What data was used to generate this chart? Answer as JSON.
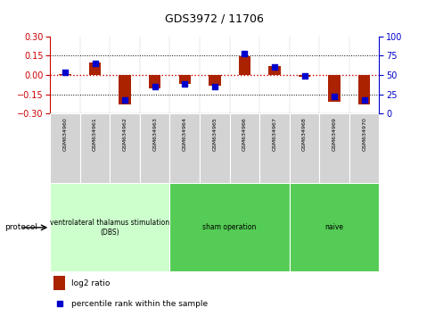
{
  "title": "GDS3972 / 11706",
  "samples": [
    "GSM634960",
    "GSM634961",
    "GSM634962",
    "GSM634963",
    "GSM634964",
    "GSM634965",
    "GSM634966",
    "GSM634967",
    "GSM634968",
    "GSM634969",
    "GSM634970"
  ],
  "log2_ratio": [
    0.01,
    0.1,
    -0.225,
    -0.1,
    -0.07,
    -0.08,
    0.145,
    0.07,
    -0.01,
    -0.21,
    -0.23
  ],
  "percentile_rank": [
    53,
    65,
    18,
    35,
    38,
    35,
    78,
    60,
    49,
    22,
    18
  ],
  "ylim_left": [
    -0.3,
    0.3
  ],
  "ylim_right": [
    0,
    100
  ],
  "yticks_left": [
    -0.3,
    -0.15,
    0,
    0.15,
    0.3
  ],
  "yticks_right": [
    0,
    25,
    50,
    75,
    100
  ],
  "bar_color": "#AA2200",
  "dot_color": "#0000CC",
  "zero_line_color": "#CC0000",
  "grid_color": "#000000",
  "proto_ranges": [
    {
      "label": "ventrolateral thalamus stimulation\n(DBS)",
      "start": 0,
      "end": 4,
      "color": "#ccffcc"
    },
    {
      "label": "sham operation",
      "start": 4,
      "end": 8,
      "color": "#44cc44"
    },
    {
      "label": "naive",
      "start": 8,
      "end": 11,
      "color": "#44cc44"
    }
  ],
  "protocol_label": "protocol",
  "legend_log2": "log2 ratio",
  "legend_pct": "percentile rank within the sample",
  "background_color": "#ffffff",
  "bar_width": 0.4,
  "title_fontsize": 9
}
